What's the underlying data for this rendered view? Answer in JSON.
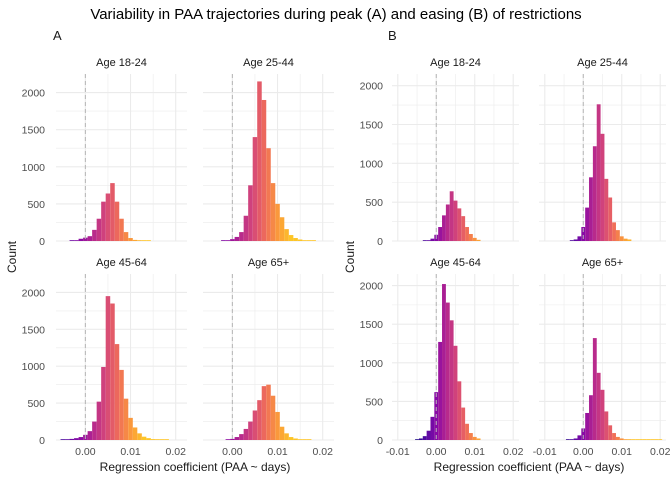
{
  "title": "Variability in PAA trajectories during peak (A) and easing (B) of restrictions",
  "colors": {
    "grid": "#ebebeb",
    "ref_line": "#b5b5b5",
    "text": "#1a1a1a",
    "tick_text": "#4d4d4d",
    "gradient": [
      "#1f0c8a",
      "#5a0aa4",
      "#8b0aa5",
      "#b4268e",
      "#d4467a",
      "#ef6c5a",
      "#fb9a3a",
      "#fdc527"
    ]
  },
  "panels": [
    {
      "label": "A",
      "xlabel": "Regression coefficient (PAA ~ days)",
      "ylabel": "Count",
      "xticks": [
        "0.00",
        "0.01",
        "0.02"
      ],
      "xtick_values": [
        0.0,
        0.01,
        0.02
      ],
      "yticks": [
        "0",
        "500",
        "1000",
        "1500",
        "2000"
      ],
      "ytick_values": [
        0,
        500,
        1000,
        1500,
        2000
      ]
    },
    {
      "label": "B",
      "xlabel": "Regression coefficient (PAA ~ days)",
      "ylabel": "Count",
      "xticks": [
        "-0.01",
        "0.00",
        "0.01",
        "0.02"
      ],
      "xtick_values": [
        -0.01,
        0.0,
        0.01,
        0.02
      ],
      "yticks": [
        "0",
        "500",
        "1000",
        "1500",
        "2000"
      ],
      "ytick_values": [
        0,
        500,
        1000,
        1500,
        2000
      ]
    }
  ],
  "chart_data": [
    {
      "type": "bar",
      "title": "Age 18-24",
      "group": "A",
      "xlim": [
        -0.0065,
        0.0225
      ],
      "ylim": [
        0,
        2250
      ],
      "bin_width": 0.001,
      "reference_line_x": 0.0,
      "x": [
        -0.003,
        -0.002,
        -0.001,
        0.0,
        0.001,
        0.002,
        0.003,
        0.004,
        0.005,
        0.006,
        0.007,
        0.008,
        0.009,
        0.01,
        0.011,
        0.012,
        0.013,
        0.014
      ],
      "values": [
        5,
        10,
        30,
        45,
        65,
        150,
        300,
        530,
        640,
        780,
        530,
        300,
        120,
        40,
        15,
        5,
        3,
        2
      ]
    },
    {
      "type": "bar",
      "title": "Age 25-44",
      "group": "A",
      "xlim": [
        -0.0065,
        0.0225
      ],
      "ylim": [
        0,
        2250
      ],
      "bin_width": 0.001,
      "reference_line_x": 0.0,
      "x": [
        -0.002,
        -0.001,
        0.0,
        0.001,
        0.002,
        0.003,
        0.004,
        0.005,
        0.006,
        0.007,
        0.008,
        0.009,
        0.01,
        0.011,
        0.012,
        0.013,
        0.014,
        0.015,
        0.016,
        0.017,
        0.018
      ],
      "values": [
        5,
        10,
        25,
        55,
        120,
        340,
        750,
        1400,
        2150,
        1900,
        1250,
        780,
        500,
        320,
        160,
        80,
        40,
        20,
        10,
        5,
        3
      ]
    },
    {
      "type": "bar",
      "title": "Age 45-64",
      "group": "A",
      "xlim": [
        -0.0065,
        0.0225
      ],
      "ylim": [
        0,
        2250
      ],
      "bin_width": 0.001,
      "reference_line_x": 0.0,
      "x": [
        -0.005,
        -0.004,
        -0.003,
        -0.002,
        -0.001,
        0.0,
        0.001,
        0.002,
        0.003,
        0.004,
        0.005,
        0.006,
        0.007,
        0.008,
        0.009,
        0.01,
        0.011,
        0.012,
        0.013,
        0.014,
        0.015,
        0.016,
        0.017,
        0.018
      ],
      "values": [
        5,
        10,
        15,
        25,
        40,
        70,
        120,
        250,
        520,
        990,
        1950,
        1850,
        1300,
        950,
        560,
        300,
        170,
        90,
        45,
        25,
        12,
        6,
        3,
        2
      ]
    },
    {
      "type": "bar",
      "title": "Age 65+",
      "group": "A",
      "xlim": [
        -0.0065,
        0.0225
      ],
      "ylim": [
        0,
        2250
      ],
      "bin_width": 0.001,
      "reference_line_x": 0.0,
      "x": [
        -0.001,
        0.0,
        0.001,
        0.002,
        0.003,
        0.004,
        0.005,
        0.006,
        0.007,
        0.008,
        0.009,
        0.01,
        0.011,
        0.012,
        0.013,
        0.014,
        0.015,
        0.016,
        0.017
      ],
      "values": [
        5,
        15,
        40,
        80,
        150,
        250,
        400,
        540,
        730,
        750,
        600,
        380,
        180,
        90,
        40,
        20,
        10,
        5,
        2
      ]
    },
    {
      "type": "bar",
      "title": "Age 18-24",
      "group": "B",
      "xlim": [
        -0.0115,
        0.0215
      ],
      "ylim": [
        0,
        2150
      ],
      "bin_width": 0.001,
      "reference_line_x": 0.0,
      "x": [
        -0.003,
        -0.002,
        -0.001,
        0.0,
        0.001,
        0.002,
        0.003,
        0.004,
        0.005,
        0.006,
        0.007,
        0.008,
        0.009,
        0.01,
        0.011
      ],
      "values": [
        5,
        10,
        30,
        80,
        180,
        330,
        470,
        640,
        520,
        420,
        320,
        180,
        90,
        40,
        15
      ]
    },
    {
      "type": "bar",
      "title": "Age 25-44",
      "group": "B",
      "xlim": [
        -0.0115,
        0.0215
      ],
      "ylim": [
        0,
        2150
      ],
      "bin_width": 0.001,
      "reference_line_x": 0.0,
      "x": [
        -0.003,
        -0.002,
        -0.001,
        0.0,
        0.001,
        0.002,
        0.003,
        0.004,
        0.005,
        0.006,
        0.007,
        0.008,
        0.009,
        0.01,
        0.011,
        0.012
      ],
      "values": [
        5,
        20,
        60,
        180,
        430,
        820,
        1220,
        1760,
        1380,
        800,
        560,
        240,
        140,
        60,
        30,
        20
      ]
    },
    {
      "type": "bar",
      "title": "Age 45-64",
      "group": "B",
      "xlim": [
        -0.0115,
        0.0215
      ],
      "ylim": [
        0,
        2150
      ],
      "bin_width": 0.001,
      "reference_line_x": 0.0,
      "x": [
        -0.005,
        -0.004,
        -0.003,
        -0.002,
        -0.001,
        0.0,
        0.001,
        0.002,
        0.003,
        0.004,
        0.005,
        0.006,
        0.007,
        0.008,
        0.009,
        0.01,
        0.011
      ],
      "values": [
        10,
        20,
        50,
        120,
        300,
        620,
        1270,
        2020,
        1780,
        1550,
        1220,
        760,
        420,
        210,
        90,
        40,
        20
      ]
    },
    {
      "type": "bar",
      "title": "Age 65+",
      "group": "B",
      "xlim": [
        -0.0115,
        0.0215
      ],
      "ylim": [
        0,
        2150
      ],
      "bin_width": 0.001,
      "reference_line_x": 0.0,
      "x": [
        -0.004,
        -0.003,
        -0.002,
        -0.001,
        0.0,
        0.001,
        0.002,
        0.003,
        0.004,
        0.005,
        0.006,
        0.007,
        0.008,
        0.009,
        0.01,
        0.011,
        0.012,
        0.013,
        0.014,
        0.015,
        0.016,
        0.017,
        0.018,
        0.019,
        0.02
      ],
      "values": [
        5,
        10,
        20,
        60,
        150,
        350,
        580,
        1320,
        870,
        650,
        370,
        190,
        90,
        40,
        20,
        10,
        5,
        3,
        2,
        1,
        1,
        1,
        1,
        1,
        1
      ]
    }
  ]
}
